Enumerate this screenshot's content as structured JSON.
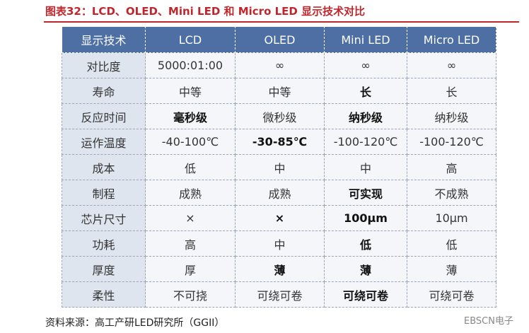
{
  "header": {
    "title": "图表32：LCD、OLED、Mini LED 和 Micro LED 显示技术对比"
  },
  "table": {
    "columns": [
      "显示技术",
      "LCD",
      "OLED",
      "Mini LED",
      "Micro LED"
    ],
    "rows": [
      [
        "对比度",
        "5000:01:00",
        "∞",
        "∞",
        "∞"
      ],
      [
        "寿命",
        "中等",
        "中等",
        "长",
        "长"
      ],
      [
        "反应时间",
        "毫秒级",
        "微秒级",
        "纳秒级",
        "纳秒级"
      ],
      [
        "运作温度",
        "-40-100℃",
        "-30-85℃",
        "-100-120℃",
        "-100-120℃"
      ],
      [
        "成本",
        "低",
        "中",
        "中",
        "高"
      ],
      [
        "制程",
        "成熟",
        "成熟",
        "可实现",
        "不成熟"
      ],
      [
        "芯片尺寸",
        "×",
        "×",
        "100μm",
        "10μm"
      ],
      [
        "功耗",
        "高",
        "中",
        "低",
        "低"
      ],
      [
        "厚度",
        "厚",
        "薄",
        "薄",
        "薄"
      ],
      [
        "柔性",
        "不可挠",
        "可绕可卷",
        "可绕可卷",
        "可绕可卷"
      ]
    ]
  },
  "footer": {
    "source": "资料来源：高工产研LED研究所（GGII）",
    "watermark": "EBSCN电子"
  }
}
